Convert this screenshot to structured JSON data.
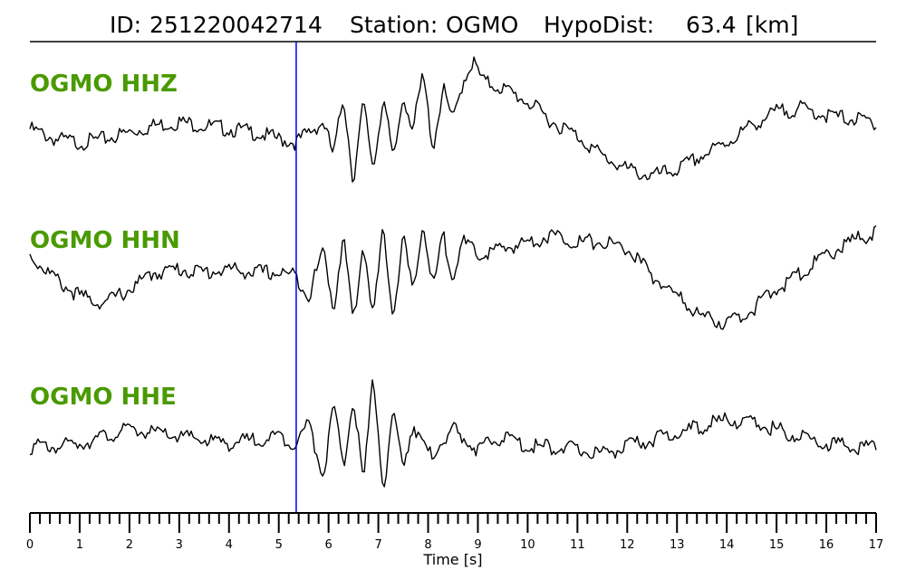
{
  "title": {
    "id_label": "ID:",
    "id_value": "251220042714",
    "station_label": "Station:",
    "station_value": "OGMO",
    "hypodist_label": "HypoDist:",
    "hypodist_value": "63.4",
    "hypodist_unit": "[km]"
  },
  "colors": {
    "channel_label": "#4a9a00",
    "waveform": "#000000",
    "pick_line": "#0000ee",
    "axis": "#000000"
  },
  "chart_data": {
    "type": "line",
    "xlabel": "Time [s]",
    "xlim": [
      0,
      17
    ],
    "major_ticks": [
      0,
      1,
      2,
      3,
      4,
      5,
      6,
      7,
      8,
      9,
      10,
      11,
      12,
      13,
      14,
      15,
      16,
      17
    ],
    "minor_tick_step": 0.2,
    "pick_time": 5.35,
    "series": [
      {
        "name": "OGMO HHZ",
        "x": [
          0,
          0.5,
          1,
          1.5,
          2,
          2.5,
          3,
          3.5,
          4,
          4.5,
          5,
          5.35,
          5.6,
          5.9,
          6.1,
          6.3,
          6.5,
          6.7,
          6.9,
          7.1,
          7.3,
          7.5,
          7.7,
          7.9,
          8.1,
          8.3,
          8.5,
          8.7,
          8.9,
          9.1,
          9.5,
          10,
          10.5,
          11,
          11.5,
          12,
          12.5,
          13,
          13.5,
          14,
          14.5,
          15,
          15.5,
          16,
          16.5,
          17
        ],
        "y": [
          0.1,
          -0.05,
          -0.1,
          -0.05,
          0.05,
          0.15,
          0.2,
          0.15,
          0.1,
          0.05,
          -0.05,
          -0.1,
          0.05,
          0.2,
          -0.3,
          0.6,
          -0.7,
          0.5,
          -0.5,
          0.6,
          -0.4,
          0.6,
          0.1,
          0.9,
          -0.2,
          0.7,
          0.2,
          0.8,
          1.1,
          0.8,
          0.7,
          0.5,
          0.2,
          0.0,
          -0.3,
          -0.5,
          -0.6,
          -0.5,
          -0.3,
          -0.1,
          0.15,
          0.35,
          0.4,
          0.3,
          0.25,
          0.2
        ]
      },
      {
        "name": "OGMO HHN",
        "x": [
          0,
          0.3,
          0.6,
          1,
          1.5,
          2,
          2.5,
          3,
          3.5,
          4,
          4.5,
          5,
          5.35,
          5.6,
          5.9,
          6.1,
          6.3,
          6.5,
          6.7,
          6.9,
          7.1,
          7.3,
          7.5,
          7.7,
          7.9,
          8.1,
          8.3,
          8.5,
          8.7,
          9,
          9.5,
          10,
          10.5,
          11,
          11.5,
          12,
          12.5,
          13,
          13.5,
          14,
          14.5,
          15,
          15.5,
          16,
          16.5,
          17
        ],
        "y": [
          0.3,
          0.1,
          -0.1,
          -0.3,
          -0.4,
          -0.2,
          0.05,
          0.1,
          0.05,
          0.1,
          0.05,
          0.05,
          0.0,
          -0.3,
          0.4,
          -0.5,
          0.6,
          -0.7,
          0.5,
          -0.6,
          0.7,
          -0.6,
          0.6,
          -0.3,
          0.8,
          -0.2,
          0.6,
          0.0,
          0.5,
          0.3,
          0.4,
          0.5,
          0.6,
          0.5,
          0.5,
          0.4,
          0.0,
          -0.3,
          -0.6,
          -0.7,
          -0.5,
          -0.2,
          0.05,
          0.3,
          0.5,
          0.65
        ]
      },
      {
        "name": "OGMO HHE",
        "x": [
          0,
          0.5,
          1,
          1.5,
          2,
          2.5,
          3,
          3.5,
          4,
          4.5,
          5,
          5.35,
          5.6,
          5.9,
          6.1,
          6.3,
          6.5,
          6.7,
          6.9,
          7.1,
          7.3,
          7.5,
          7.7,
          8,
          8.5,
          9,
          9.5,
          10,
          10.5,
          11,
          11.5,
          12,
          12.5,
          13,
          13.5,
          14,
          14.5,
          15,
          15.5,
          16,
          16.5,
          17
        ],
        "y": [
          -0.05,
          -0.05,
          0.0,
          0.1,
          0.2,
          0.15,
          0.1,
          0.05,
          0.0,
          0.05,
          0.1,
          0.0,
          0.3,
          -0.5,
          0.6,
          -0.4,
          0.7,
          -0.6,
          1.0,
          -0.7,
          0.4,
          -0.3,
          0.3,
          -0.2,
          0.2,
          -0.1,
          0.1,
          -0.05,
          -0.05,
          -0.1,
          -0.15,
          -0.05,
          0.05,
          0.15,
          0.25,
          0.35,
          0.3,
          0.2,
          0.1,
          0.0,
          -0.05,
          -0.05
        ]
      }
    ]
  }
}
